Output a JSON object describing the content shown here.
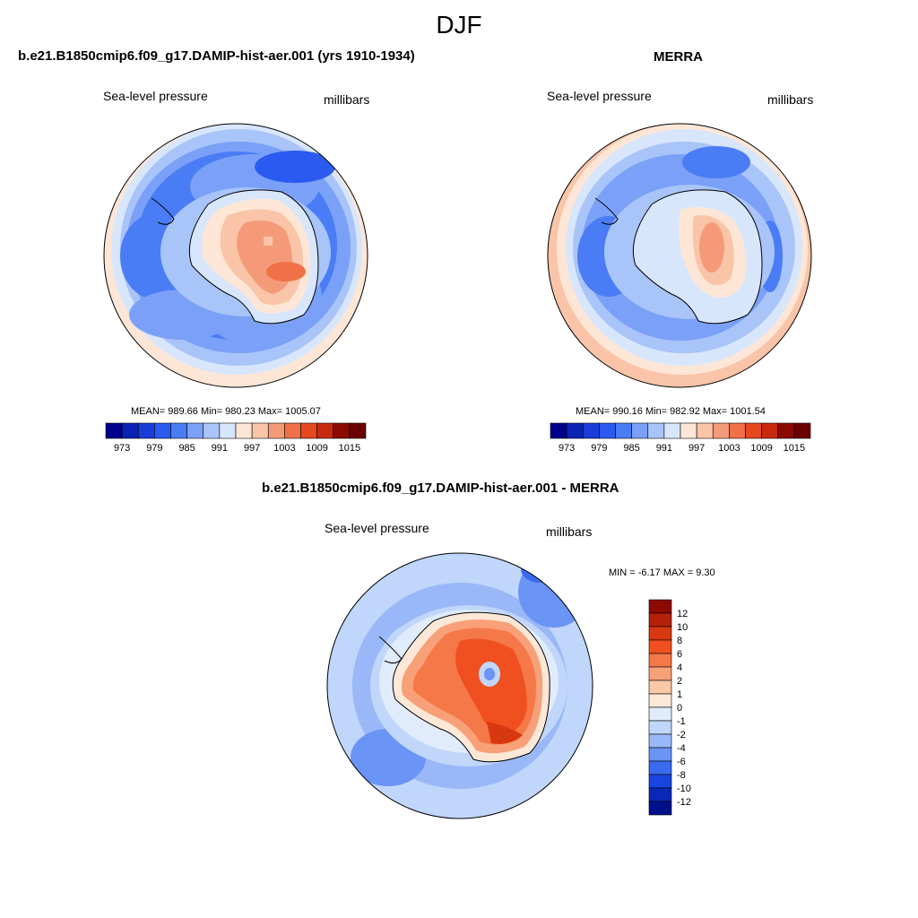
{
  "figure": {
    "season": "DJF"
  },
  "panels": [
    {
      "title": "b.e21.B1850cmip6.f09_g17.DAMIP-hist-aer.001 (yrs 1910-1934)",
      "variable": "Sea-level pressure",
      "units": "millibars",
      "stats": "MEAN= 989.66  Min= 980.23  Max= 1005.07"
    },
    {
      "title": "MERRA",
      "variable": "Sea-level pressure",
      "units": "millibars",
      "stats": "MEAN= 990.16  Min= 982.92  Max= 1001.54"
    },
    {
      "title": "b.e21.B1850cmip6.f09_g17.DAMIP-hist-aer.001 - MERRA",
      "variable": "Sea-level pressure",
      "units": "millibars",
      "stats": "MIN =  -6.17 MAX =   9.30"
    }
  ],
  "colorbar_abs": {
    "levels": [
      "973",
      "976",
      "979",
      "982",
      "985",
      "988",
      "991",
      "994",
      "997",
      "1000",
      "1003",
      "1006",
      "1009",
      "1012",
      "1015"
    ],
    "tick_labels": [
      "973",
      "979",
      "985",
      "991",
      "997",
      "1003",
      "1009",
      "1015"
    ],
    "colors": [
      "#00008c",
      "#0a23b4",
      "#1a3cd8",
      "#2a5af0",
      "#4a7cf5",
      "#7aa0f8",
      "#a8c4f8",
      "#d8e6fc",
      "#fde6d6",
      "#f9c4a8",
      "#f59a78",
      "#f07048",
      "#e64820",
      "#c82a10",
      "#8c0a00",
      "#6a0000"
    ]
  },
  "colorbar_diff": {
    "tick_labels": [
      "12",
      "10",
      "8",
      "6",
      "4",
      "2",
      "1",
      "0",
      "-1",
      "-2",
      "-4",
      "-6",
      "-8",
      "-10",
      "-12"
    ],
    "colors": [
      "#8c0a00",
      "#b42008",
      "#d83810",
      "#f05020",
      "#f57848",
      "#f8a078",
      "#fbc8a8",
      "#fde8d8",
      "#e0ecfc",
      "#c0d6fa",
      "#9ab8f8",
      "#6a94f5",
      "#3a6af0",
      "#1a44e0",
      "#0a28b8",
      "#00108c"
    ]
  }
}
